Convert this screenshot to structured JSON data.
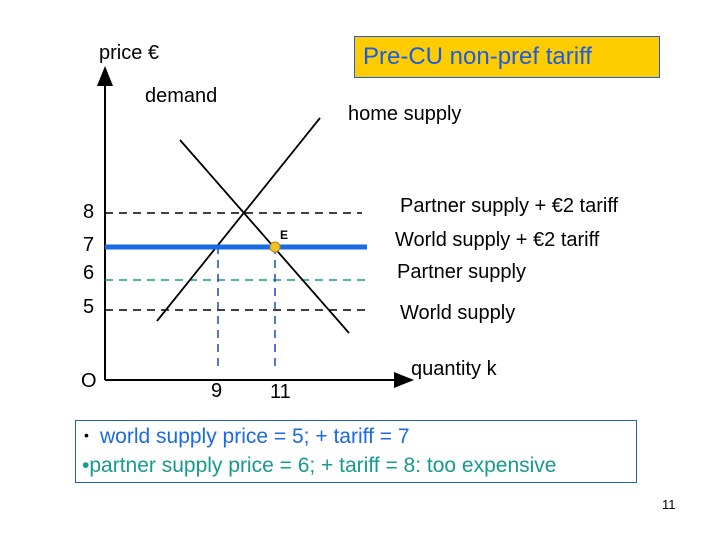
{
  "title": "Pre-CU non-pref tariff",
  "axes": {
    "y_label": "price €",
    "x_label": "quantity k",
    "origin": "O"
  },
  "curves": {
    "demand": "demand",
    "home_supply": "home supply"
  },
  "price_levels": [
    {
      "value": "8",
      "label": "Partner supply + €2 tariff"
    },
    {
      "value": "7",
      "label": "World supply + €2 tariff"
    },
    {
      "value": "6",
      "label": "Partner supply"
    },
    {
      "value": "5",
      "label": "World supply"
    }
  ],
  "quantities": [
    "9",
    "11"
  ],
  "equilibrium_label": "E",
  "notes": [
    "world supply price = 5; + tariff = 7",
    "•partner supply price = 6; + tariff = 8: too expensive"
  ],
  "note_bullet": "•",
  "page_number": "11",
  "colors": {
    "world": "#1a6ae6",
    "partner": "#169a8e",
    "title_bg": "#ffcc00",
    "point": "#f2c230"
  }
}
